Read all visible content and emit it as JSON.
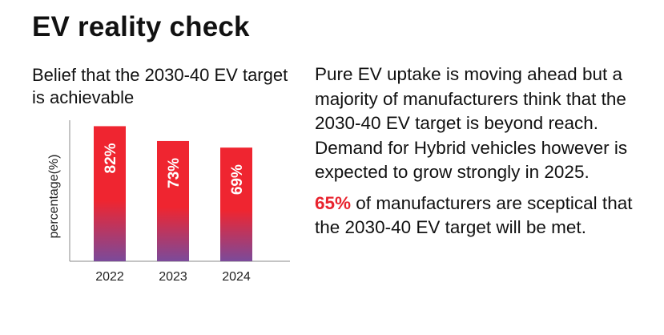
{
  "title": "EV reality check",
  "chart_data": {
    "type": "bar",
    "title": "Belief that the 2030-40 EV target is achievable",
    "xlabel": "",
    "ylabel": "percentage(%)",
    "categories": [
      "2022",
      "2023",
      "2024"
    ],
    "values": [
      82,
      73,
      69
    ],
    "data_labels": [
      "82%",
      "73%",
      "69%"
    ],
    "ylim": [
      0,
      90
    ],
    "grid": false,
    "legend": "none",
    "bar_gradient": [
      "#ef2530",
      "#7b4a9a"
    ]
  },
  "text": {
    "paragraph1": "Pure EV uptake is moving ahead but a majority of manufacturers think that the 2030-40 EV target is beyond reach. Demand for Hybrid vehicles however is expected to grow strongly in 2025.",
    "highlight": "65%",
    "paragraph2": " of manufacturers are sceptical that the 2030-40 EV target will be met."
  },
  "colors": {
    "accent": "#e8232e",
    "text": "#111111",
    "axis": "#888888"
  }
}
